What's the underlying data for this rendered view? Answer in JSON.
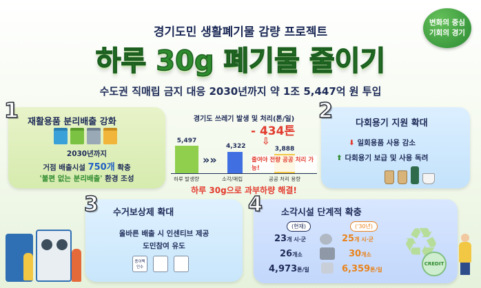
{
  "header": {
    "topline": "경기도민 생활폐기물 감량 프로젝트",
    "headline": "하루 30g 폐기물 줄이기",
    "subline": "수도권 직매립 금지 대응 2030년까지 약 1조 5,447억 원 투입",
    "badge_line1": "변화의 중심",
    "badge_line2": "기회의 경기"
  },
  "section1": {
    "number": "1",
    "title": "재활용품 분리배출 강화",
    "line1": "2030년까지",
    "line2_prefix": "거점 배출시설 ",
    "line2_highlight": "750개",
    "line2_suffix": " 확충",
    "line3_highlight": "'불편 없는 분리배출'",
    "line3_suffix": " 환경 조성"
  },
  "center_chart": {
    "title": "경기도 쓰레기 발생 및 처리(톤/일)",
    "reduction": "- 434톤",
    "reduction_note": "줄여야 전량 공공 처리 가능!",
    "cta": "하루 30g으로 과부하량 해결!",
    "arrows": "»»"
  },
  "chart_data": {
    "type": "bar",
    "categories": [
      "하루 발생량",
      "소각/매립",
      "공공 처리 용량"
    ],
    "values": [
      5497,
      4322,
      3888
    ],
    "value_labels": [
      "5,497",
      "4,322",
      "3,888"
    ],
    "colors": [
      "#8fcf4d",
      "#3f6fe0",
      "#f2c744"
    ],
    "ylim": [
      0,
      5500
    ]
  },
  "section2": {
    "number": "2",
    "title": "다회용기 지원 확대",
    "item1_arrow": "⬇",
    "item1": "일회용품 사용 감소",
    "item2_arrow": "⬆",
    "item2": "다회용기 보급 및 사용 독려"
  },
  "section3": {
    "number": "3",
    "title": "수거보상제 확대",
    "line1": "올바른 배출 시 인센티브 제공",
    "line2": "도민참여 유도",
    "icon1_label": "종이팩 인수"
  },
  "section4": {
    "number": "4",
    "title": "소각시설 단계적 확충",
    "col_now": "(현재)",
    "col_future": "('30년)",
    "rows": [
      {
        "now": "23",
        "now_unit": "개 시·군",
        "future": "25",
        "future_unit": "개 시·군"
      },
      {
        "now": "26",
        "now_unit": "개소",
        "future": "30",
        "future_unit": "개소"
      },
      {
        "now": "4,973",
        "now_unit": "톤/일",
        "future": "6,359",
        "future_unit": "톤/일"
      }
    ],
    "credit_label": "CREDIT"
  },
  "colors": {
    "brand_green": "#2e8b2e",
    "navy_text": "#1d2a57",
    "alert_red": "#e23b2e",
    "accent_orange": "#e9821a"
  }
}
